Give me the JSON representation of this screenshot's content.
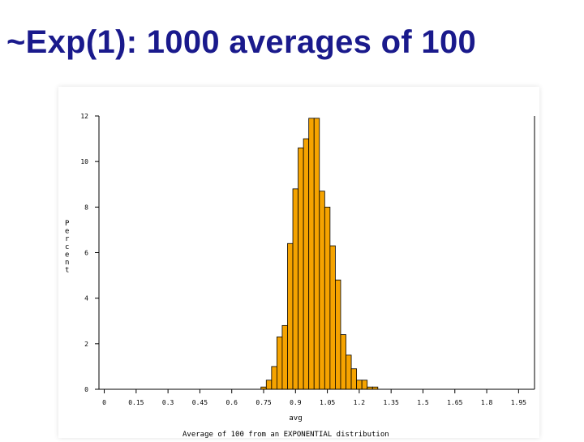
{
  "slide": {
    "title": "~Exp(1): 1000 averages of 100"
  },
  "chart_data": {
    "type": "bar",
    "title": "",
    "xlabel": "avg",
    "ylabel": "Percent",
    "footnote": "Average of 100 from an EXPONENTIAL distribution",
    "x_ticks": [
      "0",
      "0.15",
      "0.3",
      "0.45",
      "0.6",
      "0.75",
      "0.9",
      "1.05",
      "1.2",
      "1.35",
      "1.5",
      "1.65",
      "1.8",
      "1.95"
    ],
    "y_ticks": [
      "0",
      "2",
      "4",
      "6",
      "8",
      "10",
      "12"
    ],
    "xlim": [
      -0.025,
      2.025
    ],
    "ylim": [
      0,
      12
    ],
    "bin_width": 0.025,
    "bin_centers": [
      0.75,
      0.775,
      0.8,
      0.825,
      0.85,
      0.875,
      0.9,
      0.925,
      0.95,
      0.975,
      1.0,
      1.025,
      1.05,
      1.075,
      1.1,
      1.125,
      1.15,
      1.175,
      1.2,
      1.225,
      1.25,
      1.275,
      1.3
    ],
    "values": [
      0.1,
      0.4,
      1.0,
      2.3,
      2.8,
      6.4,
      8.8,
      10.6,
      11.0,
      11.9,
      11.9,
      8.7,
      8.0,
      6.3,
      4.8,
      2.4,
      1.5,
      0.9,
      0.4,
      0.4,
      0.1,
      0.1,
      0.0
    ],
    "grid": false,
    "colors": {
      "bar_fill": "#f5a300",
      "bar_edge": "#000000",
      "axis": "#000000"
    }
  }
}
